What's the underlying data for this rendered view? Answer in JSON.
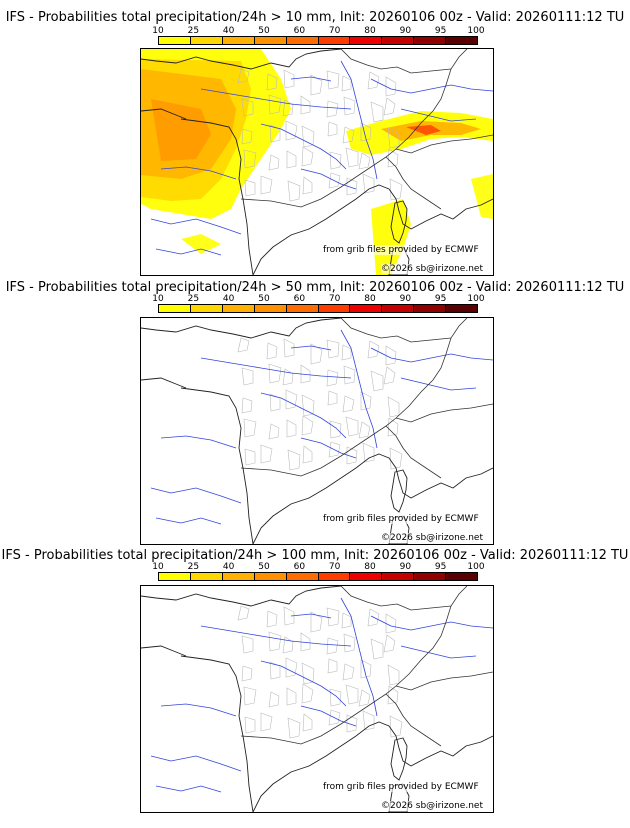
{
  "colorbar": {
    "ticks": [
      "10",
      "25",
      "40",
      "50",
      "60",
      "70",
      "80",
      "90",
      "95",
      "100"
    ],
    "colors": [
      "#ffff00",
      "#ffd700",
      "#ffb000",
      "#ff9000",
      "#ff6d00",
      "#ff3c00",
      "#ee0000",
      "#c40000",
      "#900000",
      "#5a0000"
    ]
  },
  "panels": [
    {
      "title": "IFS - Probabilities total precipitation/24h > 10 mm, Init: 20260106 00z - Valid: 20260111:12 TU",
      "credit_source": "from grib files provided by ECMWF",
      "credit_copyright": "©2026 sb@irizone.net",
      "shaded": true
    },
    {
      "title": "IFS - Probabilities total precipitation/24h > 50 mm, Init: 20260106 00z - Valid: 20260111:12 TU",
      "credit_source": "from grib files provided by ECMWF",
      "credit_copyright": "©2026 sb@irizone.net",
      "shaded": false
    },
    {
      "title": "IFS - Probabilities total precipitation/24h > 100 mm, Init: 20260106 00z - Valid: 20260111:12 TU",
      "credit_source": "from grib files provided by ECMWF",
      "credit_copyright": "©2026 sb@irizone.net",
      "shaded": false
    }
  ]
}
